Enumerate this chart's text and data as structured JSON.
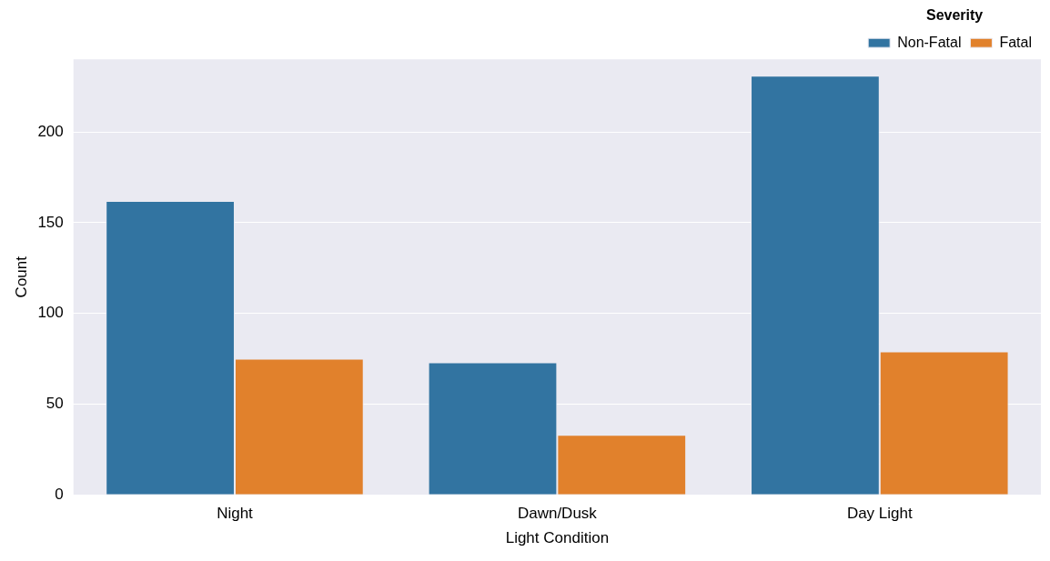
{
  "chart_data": {
    "type": "bar",
    "xlabel": "Light Condition",
    "ylabel": "Count",
    "legend_title": "Severity",
    "categories": [
      "Night",
      "Dawn/Dusk",
      "Day Light"
    ],
    "series": [
      {
        "name": "Non-Fatal",
        "color": "#3274a1",
        "values": [
          162,
          73,
          231
        ]
      },
      {
        "name": "Fatal",
        "color": "#e1812c",
        "values": [
          75,
          33,
          79
        ]
      }
    ],
    "ylim": [
      0,
      240
    ],
    "yticks": [
      0,
      50,
      100,
      150,
      200
    ],
    "grid": "y",
    "legend": "top right"
  }
}
